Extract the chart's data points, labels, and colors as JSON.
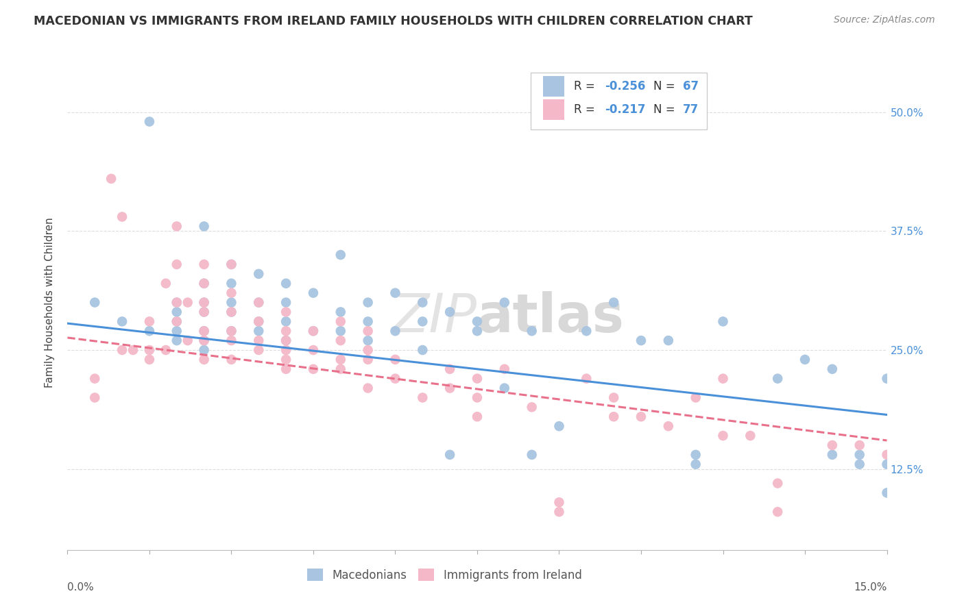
{
  "title": "MACEDONIAN VS IMMIGRANTS FROM IRELAND FAMILY HOUSEHOLDS WITH CHILDREN CORRELATION CHART",
  "source": "Source: ZipAtlas.com",
  "ylabel": "Family Households with Children",
  "ytick_labels": [
    "50.0%",
    "37.5%",
    "25.0%",
    "12.5%"
  ],
  "ytick_values": [
    0.5,
    0.375,
    0.25,
    0.125
  ],
  "xlim": [
    0.0,
    0.15
  ],
  "ylim": [
    0.04,
    0.56
  ],
  "legend_label_blue": "Macedonians",
  "legend_label_pink": "Immigrants from Ireland",
  "color_blue": "#a8c4e0",
  "color_pink": "#f4b8c8",
  "color_blue_line": "#4a90d9",
  "color_pink_line": "#e8708a",
  "color_text_blue": "#4a90d9",
  "color_text_dark": "#333333",
  "blue_r": "-0.256",
  "blue_n": "67",
  "pink_r": "-0.217",
  "pink_n": "77",
  "blue_scatter_x": [
    0.005,
    0.01,
    0.015,
    0.015,
    0.02,
    0.02,
    0.02,
    0.02,
    0.02,
    0.025,
    0.025,
    0.025,
    0.025,
    0.025,
    0.025,
    0.025,
    0.03,
    0.03,
    0.03,
    0.03,
    0.03,
    0.035,
    0.035,
    0.035,
    0.035,
    0.04,
    0.04,
    0.04,
    0.04,
    0.045,
    0.045,
    0.05,
    0.05,
    0.05,
    0.055,
    0.055,
    0.055,
    0.06,
    0.06,
    0.065,
    0.065,
    0.065,
    0.07,
    0.07,
    0.075,
    0.075,
    0.08,
    0.08,
    0.085,
    0.085,
    0.09,
    0.095,
    0.1,
    0.105,
    0.11,
    0.115,
    0.115,
    0.12,
    0.13,
    0.135,
    0.14,
    0.14,
    0.145,
    0.145,
    0.15,
    0.15,
    0.15
  ],
  "blue_scatter_y": [
    0.3,
    0.28,
    0.49,
    0.27,
    0.3,
    0.29,
    0.28,
    0.27,
    0.26,
    0.38,
    0.32,
    0.3,
    0.29,
    0.27,
    0.26,
    0.25,
    0.34,
    0.32,
    0.3,
    0.29,
    0.27,
    0.33,
    0.3,
    0.28,
    0.27,
    0.32,
    0.3,
    0.28,
    0.26,
    0.31,
    0.27,
    0.35,
    0.29,
    0.27,
    0.3,
    0.28,
    0.26,
    0.31,
    0.27,
    0.3,
    0.28,
    0.25,
    0.29,
    0.14,
    0.28,
    0.27,
    0.3,
    0.21,
    0.27,
    0.14,
    0.17,
    0.27,
    0.3,
    0.26,
    0.26,
    0.14,
    0.13,
    0.28,
    0.22,
    0.24,
    0.23,
    0.14,
    0.14,
    0.13,
    0.22,
    0.13,
    0.1
  ],
  "pink_scatter_x": [
    0.005,
    0.005,
    0.008,
    0.01,
    0.01,
    0.012,
    0.015,
    0.015,
    0.015,
    0.018,
    0.018,
    0.02,
    0.02,
    0.02,
    0.02,
    0.022,
    0.022,
    0.025,
    0.025,
    0.025,
    0.025,
    0.025,
    0.025,
    0.025,
    0.03,
    0.03,
    0.03,
    0.03,
    0.03,
    0.03,
    0.035,
    0.035,
    0.035,
    0.035,
    0.04,
    0.04,
    0.04,
    0.04,
    0.04,
    0.04,
    0.045,
    0.045,
    0.045,
    0.05,
    0.05,
    0.05,
    0.05,
    0.055,
    0.055,
    0.055,
    0.055,
    0.06,
    0.06,
    0.065,
    0.07,
    0.07,
    0.075,
    0.075,
    0.075,
    0.08,
    0.085,
    0.09,
    0.09,
    0.095,
    0.1,
    0.1,
    0.105,
    0.11,
    0.115,
    0.12,
    0.12,
    0.125,
    0.13,
    0.13,
    0.14,
    0.145,
    0.15
  ],
  "pink_scatter_y": [
    0.22,
    0.2,
    0.43,
    0.39,
    0.25,
    0.25,
    0.28,
    0.25,
    0.24,
    0.32,
    0.25,
    0.38,
    0.34,
    0.3,
    0.28,
    0.3,
    0.26,
    0.34,
    0.32,
    0.3,
    0.29,
    0.27,
    0.26,
    0.24,
    0.34,
    0.31,
    0.29,
    0.27,
    0.26,
    0.24,
    0.3,
    0.28,
    0.26,
    0.25,
    0.29,
    0.27,
    0.26,
    0.24,
    0.23,
    0.25,
    0.27,
    0.25,
    0.23,
    0.28,
    0.26,
    0.24,
    0.23,
    0.27,
    0.25,
    0.24,
    0.21,
    0.24,
    0.22,
    0.2,
    0.23,
    0.21,
    0.22,
    0.2,
    0.18,
    0.23,
    0.19,
    0.09,
    0.08,
    0.22,
    0.2,
    0.18,
    0.18,
    0.17,
    0.2,
    0.22,
    0.16,
    0.16,
    0.11,
    0.08,
    0.15,
    0.15,
    0.14
  ],
  "blue_trendline_x": [
    0.0,
    0.15
  ],
  "blue_trendline_y": [
    0.278,
    0.182
  ],
  "pink_trendline_x": [
    0.0,
    0.15
  ],
  "pink_trendline_y": [
    0.263,
    0.155
  ]
}
